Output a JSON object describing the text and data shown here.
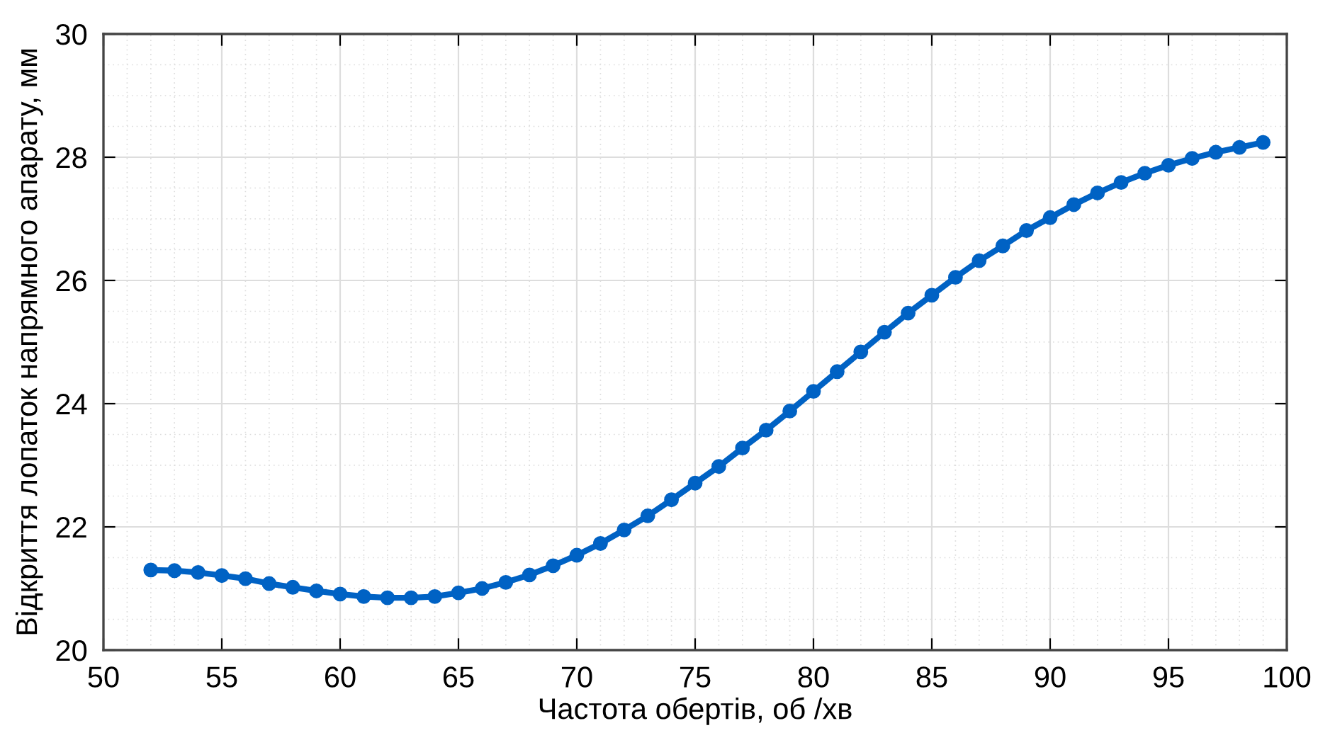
{
  "chart_data": {
    "type": "line",
    "xlabel": "Частота обертів, об /хв",
    "ylabel": "Відкриття лопаток напрямного апарату, мм",
    "x": [
      52,
      53,
      54,
      55,
      56,
      57,
      58,
      59,
      60,
      61,
      62,
      63,
      64,
      65,
      66,
      67,
      68,
      69,
      70,
      71,
      72,
      73,
      74,
      75,
      76,
      77,
      78,
      79,
      80,
      81,
      82,
      83,
      84,
      85,
      86,
      87,
      88,
      89,
      90,
      91,
      92,
      93,
      94,
      95,
      96,
      97,
      98,
      99
    ],
    "series": [
      {
        "color": "#0062c4",
        "values": [
          21.3,
          21.29,
          21.26,
          21.21,
          21.16,
          21.08,
          21.02,
          20.96,
          20.91,
          20.87,
          20.85,
          20.85,
          20.87,
          20.93,
          21.0,
          21.1,
          21.22,
          21.37,
          21.54,
          21.73,
          21.95,
          22.18,
          22.44,
          22.71,
          22.98,
          23.28,
          23.57,
          23.88,
          24.2,
          24.52,
          24.84,
          25.16,
          25.47,
          25.76,
          26.05,
          26.32,
          26.56,
          26.81,
          27.02,
          27.23,
          27.42,
          27.59,
          27.74,
          27.87,
          27.98,
          28.08,
          28.16,
          28.24
        ]
      }
    ],
    "xlim": [
      50,
      100
    ],
    "xticks": [
      50,
      55,
      60,
      65,
      70,
      75,
      80,
      85,
      90,
      95,
      100
    ],
    "ylim": [
      20,
      30
    ],
    "yticks": [
      20,
      22,
      24,
      26,
      28,
      30
    ],
    "grid": true,
    "marker": "circle",
    "line_style": "solid"
  }
}
